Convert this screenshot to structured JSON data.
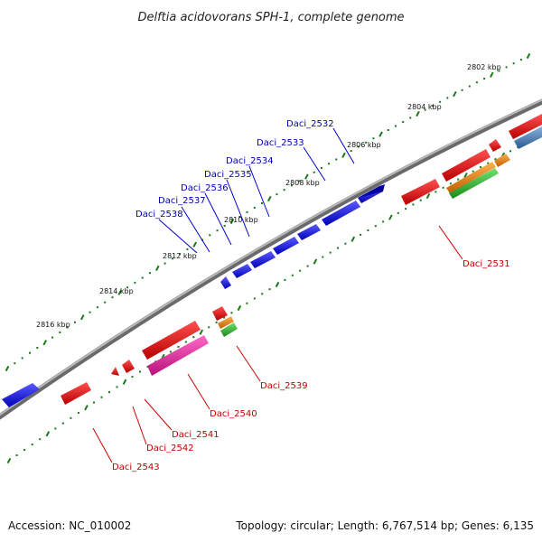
{
  "title": "Delftia acidovorans SPH-1, complete genome",
  "footer": {
    "accession": "Accession: NC_010002",
    "topology": "Topology: circular; Length: 6,767,514 bp; Genes: 6,135"
  },
  "ticks": [
    {
      "label": "2802 kbp"
    },
    {
      "label": "2804 kbp"
    },
    {
      "label": "2806 kbp"
    },
    {
      "label": "2808 kbp"
    },
    {
      "label": "2810 kbp"
    },
    {
      "label": "2812 kbp"
    },
    {
      "label": "2814 kbp"
    },
    {
      "label": "2816 kbp"
    }
  ],
  "genes_top": [
    {
      "label": "Daci_2532"
    },
    {
      "label": "Daci_2533"
    },
    {
      "label": "Daci_2534"
    },
    {
      "label": "Daci_2535"
    },
    {
      "label": "Daci_2536"
    },
    {
      "label": "Daci_2537"
    },
    {
      "label": "Daci_2538"
    }
  ],
  "genes_bottom": [
    {
      "label": "Daci_2531"
    },
    {
      "label": "Daci_2539"
    },
    {
      "label": "Daci_2540"
    },
    {
      "label": "Daci_2541"
    },
    {
      "label": "Daci_2542"
    },
    {
      "label": "Daci_2543"
    }
  ],
  "colors": {
    "forward_strand": "#1010e0",
    "reverse_strand": "#e01010",
    "pink": "#e0209a",
    "orange": "#f08a10",
    "green": "#30b030",
    "steel_blue": "#4a7ab0",
    "backbone": "#808080",
    "dots": "#1a7a1a"
  }
}
